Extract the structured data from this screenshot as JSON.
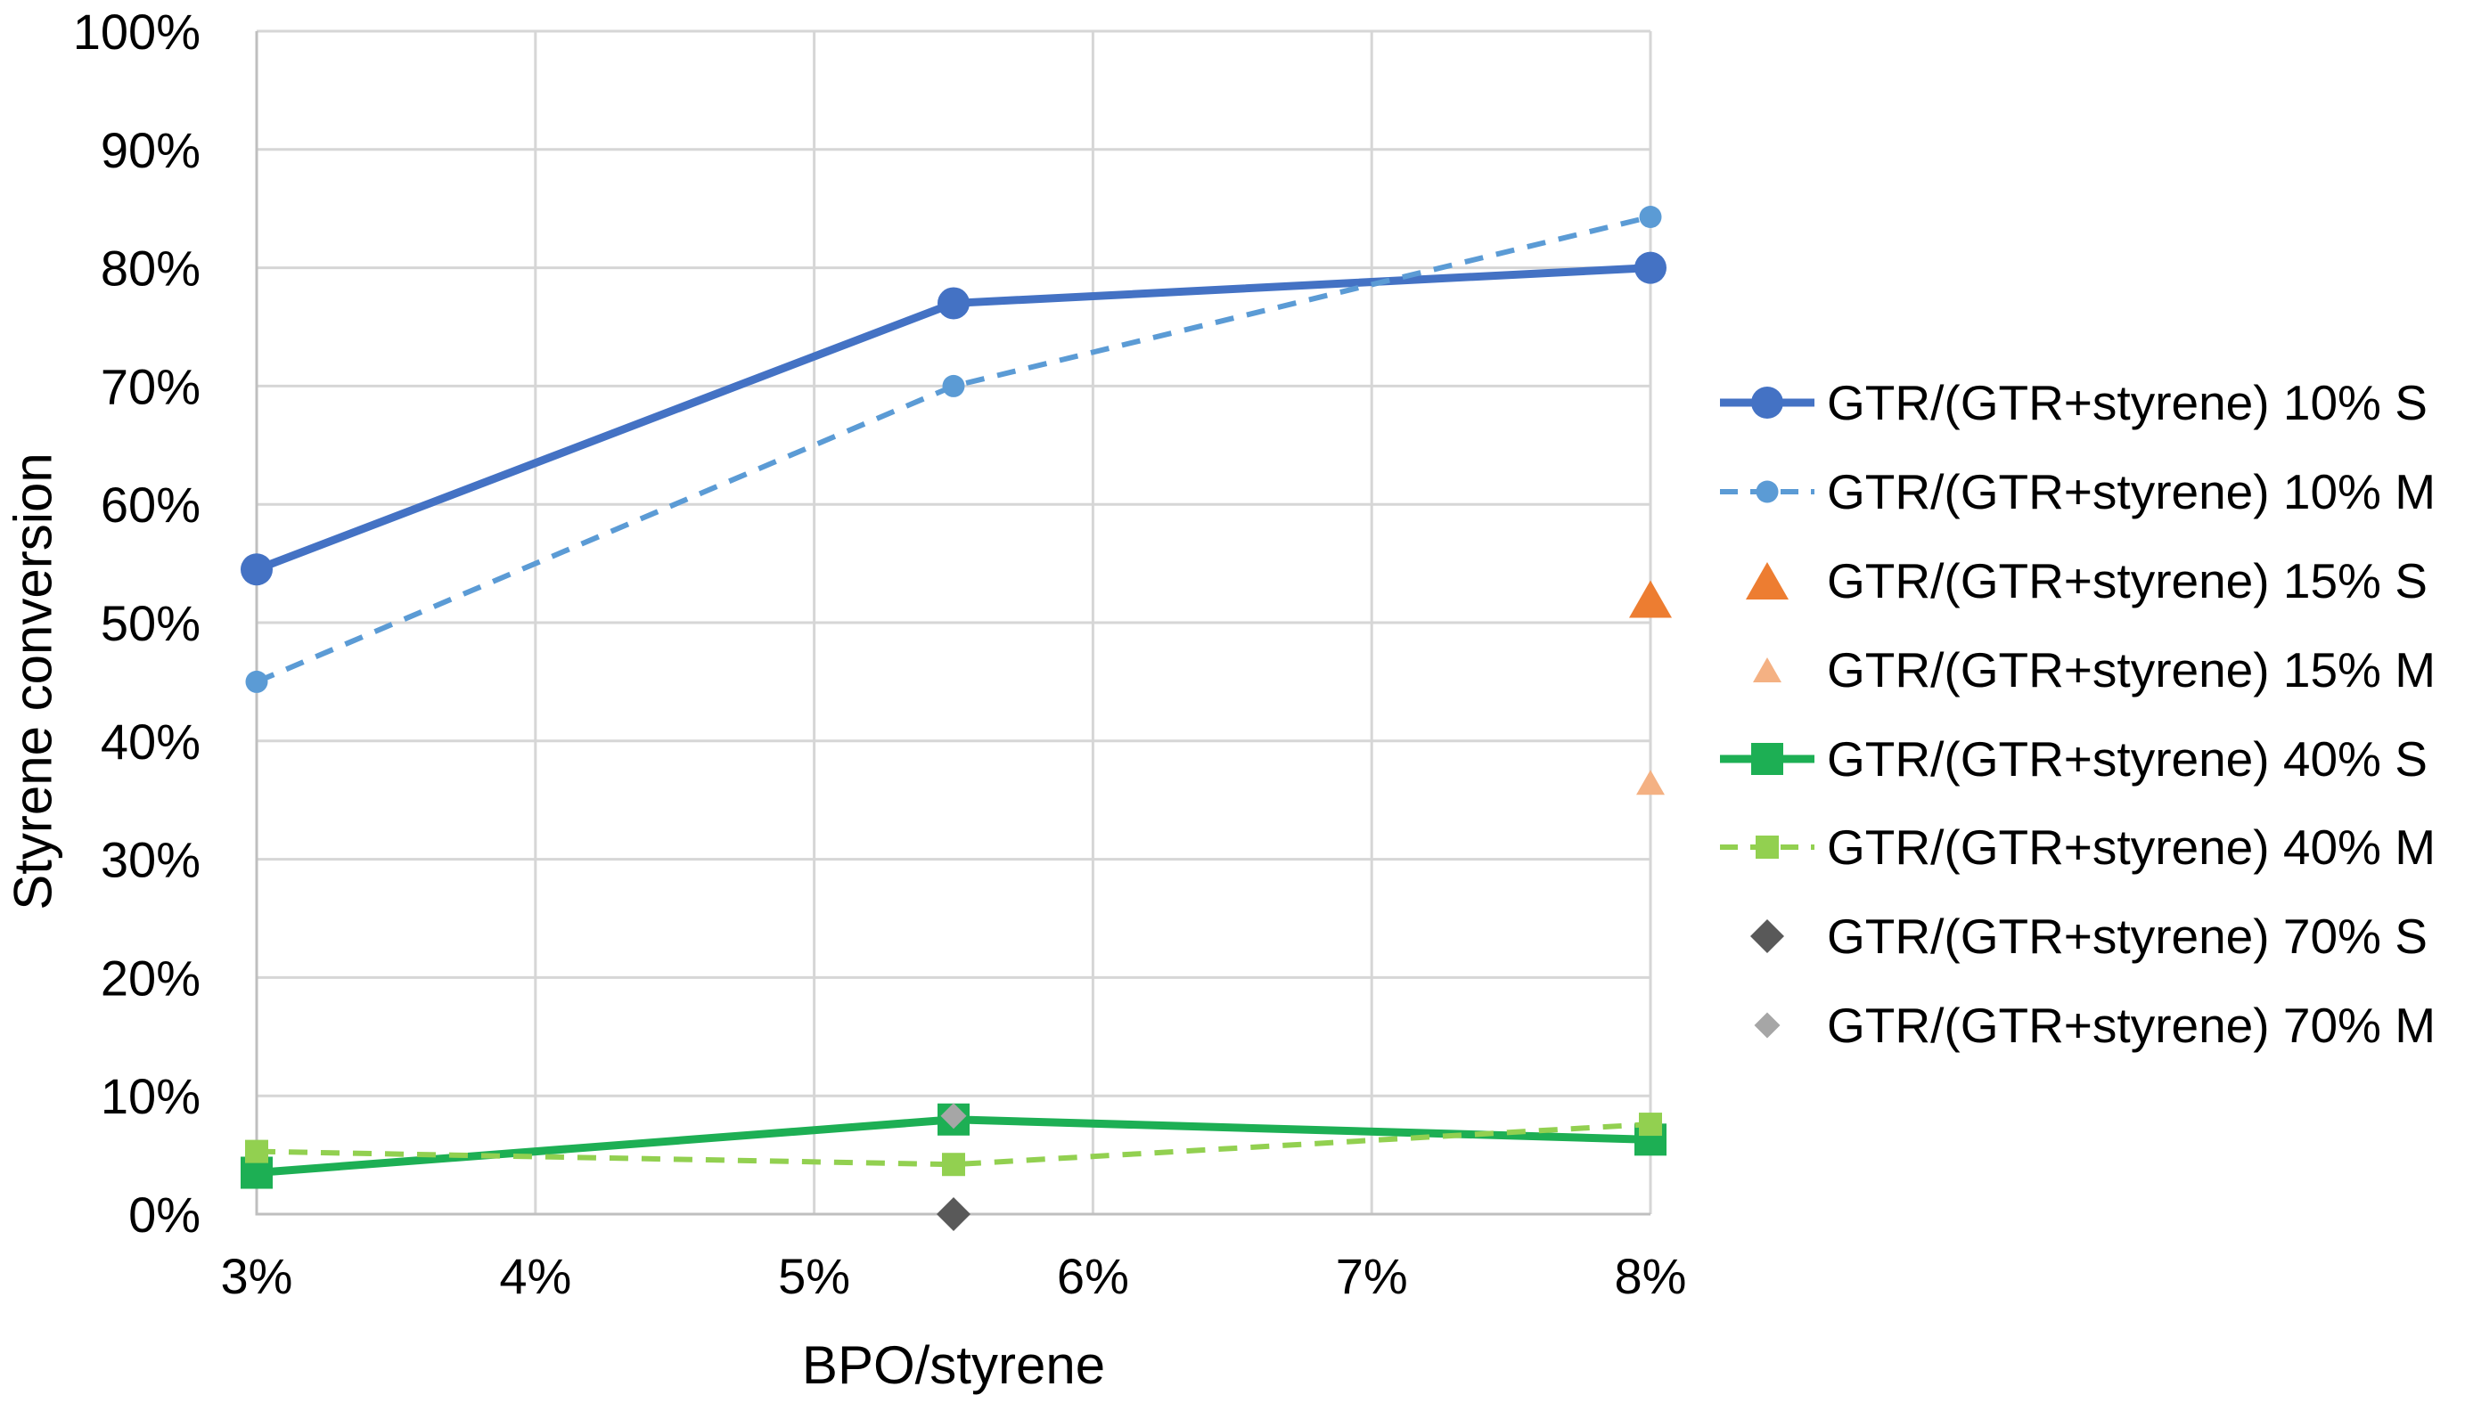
{
  "chart_data": {
    "type": "scatter-line",
    "title": "",
    "xlabel": "BPO/styrene",
    "ylabel": "Styrene conversion",
    "xlim": [
      3,
      8
    ],
    "ylim": [
      0,
      100
    ],
    "xticks": [
      3,
      4,
      5,
      6,
      7,
      8
    ],
    "xtick_labels": [
      "3%",
      "4%",
      "5%",
      "6%",
      "7%",
      "8%"
    ],
    "yticks": [
      0,
      10,
      20,
      30,
      40,
      50,
      60,
      70,
      80,
      90,
      100
    ],
    "ytick_labels": [
      "0%",
      "10%",
      "20%",
      "30%",
      "40%",
      "50%",
      "60%",
      "70%",
      "80%",
      "90%",
      "100%"
    ],
    "grid": true,
    "legend_position": "right",
    "colors": {
      "background": "#FFFFFF",
      "gridline": "#D6D6D6",
      "axis_line": "#BFBFBF",
      "text": "#000000"
    },
    "series": [
      {
        "name": "GTR/(GTR+styrene) 10% S",
        "color": "#4472C4",
        "marker": "circle",
        "marker_size": "large",
        "line": "solid",
        "points": [
          [
            3,
            54.5
          ],
          [
            5.5,
            77
          ],
          [
            8,
            80
          ]
        ]
      },
      {
        "name": "GTR/(GTR+styrene) 10% M",
        "color": "#5B9BD5",
        "marker": "circle",
        "marker_size": "small",
        "line": "dashed",
        "points": [
          [
            3,
            45
          ],
          [
            5.5,
            70
          ],
          [
            8,
            84.3
          ]
        ]
      },
      {
        "name": "GTR/(GTR+styrene) 15% S",
        "color": "#ED7D31",
        "marker": "triangle",
        "marker_size": "large",
        "line": "none",
        "points": [
          [
            8,
            52
          ]
        ]
      },
      {
        "name": "GTR/(GTR+styrene) 15% M",
        "color": "#F4B183",
        "marker": "triangle",
        "marker_size": "small",
        "line": "none",
        "points": [
          [
            8,
            36.5
          ]
        ]
      },
      {
        "name": "GTR/(GTR+styrene) 40% S",
        "color": "#1DAF54",
        "marker": "square",
        "marker_size": "large",
        "line": "solid",
        "points": [
          [
            3,
            3.5
          ],
          [
            5.5,
            8
          ],
          [
            8,
            6.3
          ]
        ]
      },
      {
        "name": "GTR/(GTR+styrene) 40% M",
        "color": "#92D050",
        "marker": "square",
        "marker_size": "small",
        "line": "dashed",
        "points": [
          [
            3,
            5.3
          ],
          [
            5.5,
            4.2
          ],
          [
            8,
            7.6
          ]
        ]
      },
      {
        "name": "GTR/(GTR+styrene) 70% S",
        "color": "#595959",
        "marker": "diamond",
        "marker_size": "large",
        "line": "none",
        "points": [
          [
            5.5,
            0
          ]
        ]
      },
      {
        "name": "GTR/(GTR+styrene) 70% M",
        "color": "#A6A6A6",
        "marker": "diamond",
        "marker_size": "small",
        "line": "none",
        "points": [
          [
            5.5,
            8.3
          ]
        ]
      }
    ]
  }
}
